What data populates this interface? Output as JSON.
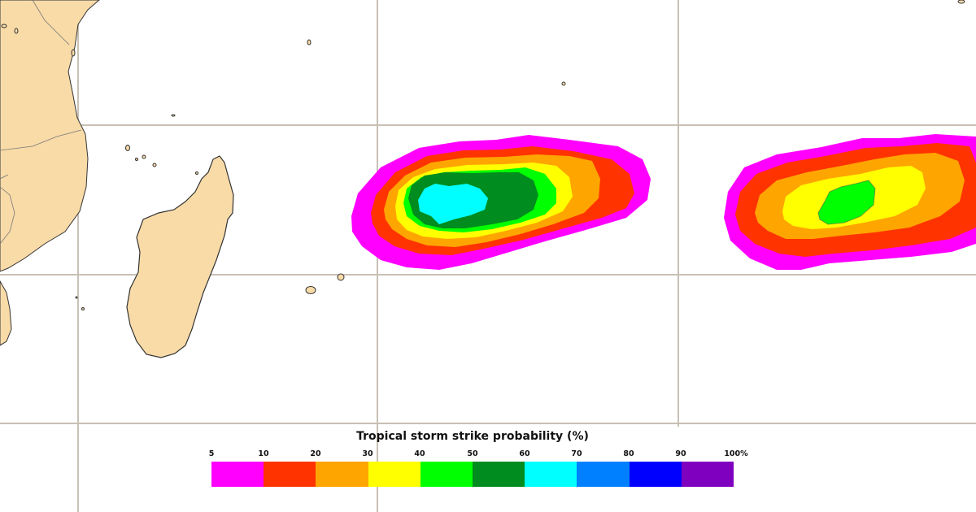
{
  "legend": {
    "title": "Tropical storm strike probability (%)",
    "ticks": [
      "5",
      "10",
      "20",
      "30",
      "40",
      "50",
      "60",
      "70",
      "80",
      "90",
      "100%"
    ],
    "colors": [
      "#ff00ff",
      "#ff3300",
      "#ffa500",
      "#ffff00",
      "#00ff00",
      "#008c1e",
      "#00ffff",
      "#0080ff",
      "#0000ff",
      "#8000c0"
    ]
  },
  "map": {
    "land_color": "#f9dba8",
    "coast_color": "#333333",
    "grid_color": "#c8c0b4",
    "features": [
      "africa-coast",
      "madagascar",
      "mascarene-islands"
    ],
    "probability_areas": [
      {
        "name": "storm-area-west",
        "max_band_percent": "60-70"
      },
      {
        "name": "storm-area-east",
        "max_band_percent": "40-50"
      }
    ]
  }
}
